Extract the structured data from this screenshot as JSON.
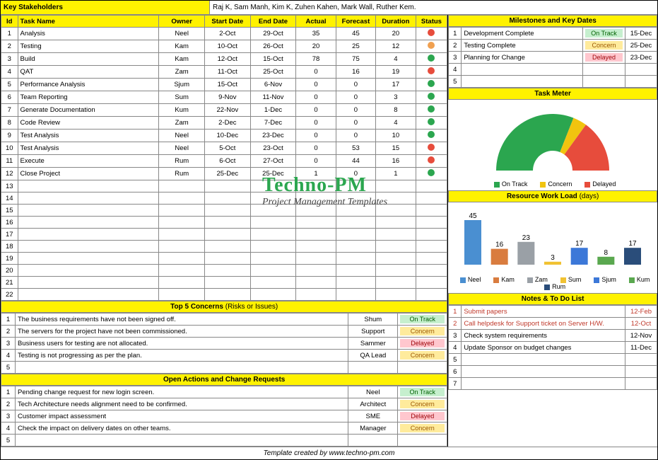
{
  "stakeholders": {
    "label": "Key Stakeholders",
    "names": "Raj K, Sam Manh, Kim K, Zuhen Kahen, Mark Wall, Ruther Kem."
  },
  "tasks": {
    "headers": [
      "Id",
      "Task Name",
      "Owner",
      "Start Date",
      "End Date",
      "Actual",
      "Forecast",
      "Duration",
      "Status"
    ],
    "rows": [
      {
        "id": 1,
        "name": "Analysis",
        "owner": "Neel",
        "start": "2-Oct",
        "end": "29-Oct",
        "actual": 35,
        "forecast": 45,
        "duration": 20,
        "status": "red"
      },
      {
        "id": 2,
        "name": "Testing",
        "owner": "Kam",
        "start": "10-Oct",
        "end": "26-Oct",
        "actual": 20,
        "forecast": 25,
        "duration": 12,
        "status": "orange"
      },
      {
        "id": 3,
        "name": "Build",
        "owner": "Kam",
        "start": "12-Oct",
        "end": "15-Oct",
        "actual": 78,
        "forecast": 75,
        "duration": 4,
        "status": "green"
      },
      {
        "id": 4,
        "name": "QAT",
        "owner": "Zam",
        "start": "11-Oct",
        "end": "25-Oct",
        "actual": 0,
        "forecast": 16,
        "duration": 19,
        "status": "red"
      },
      {
        "id": 5,
        "name": "Performance Analysis",
        "owner": "Sjum",
        "start": "15-Oct",
        "end": "6-Nov",
        "actual": 0,
        "forecast": 0,
        "duration": 17,
        "status": "green"
      },
      {
        "id": 6,
        "name": "Team Reporting",
        "owner": "Sum",
        "start": "9-Nov",
        "end": "11-Nov",
        "actual": 0,
        "forecast": 0,
        "duration": 3,
        "status": "green"
      },
      {
        "id": 7,
        "name": "Generate Documentation",
        "owner": "Kum",
        "start": "22-Nov",
        "end": "1-Dec",
        "actual": 0,
        "forecast": 0,
        "duration": 8,
        "status": "green"
      },
      {
        "id": 8,
        "name": "Code Review",
        "owner": "Zam",
        "start": "2-Dec",
        "end": "7-Dec",
        "actual": 0,
        "forecast": 0,
        "duration": 4,
        "status": "green"
      },
      {
        "id": 9,
        "name": "Test Analysis",
        "owner": "Neel",
        "start": "10-Dec",
        "end": "23-Dec",
        "actual": 0,
        "forecast": 0,
        "duration": 10,
        "status": "green"
      },
      {
        "id": 10,
        "name": "Test Analysis",
        "owner": "Neel",
        "start": "5-Oct",
        "end": "23-Oct",
        "actual": 0,
        "forecast": 53,
        "duration": 15,
        "status": "red"
      },
      {
        "id": 11,
        "name": "Execute",
        "owner": "Rum",
        "start": "6-Oct",
        "end": "27-Oct",
        "actual": 0,
        "forecast": 44,
        "duration": 16,
        "status": "red"
      },
      {
        "id": 12,
        "name": "Close Project",
        "owner": "Rum",
        "start": "25-Dec",
        "end": "25-Dec",
        "actual": 1,
        "forecast": 0,
        "duration": 1,
        "status": "green"
      }
    ],
    "blank_rows": [
      13,
      14,
      15,
      16,
      17,
      18,
      19,
      20,
      21,
      22
    ]
  },
  "milestones": {
    "title": "Milestones and Key Dates",
    "rows": [
      {
        "id": 1,
        "name": "Development Complete",
        "status": "On Track",
        "date": "15-Dec"
      },
      {
        "id": 2,
        "name": "Testing Complete",
        "status": "Concern",
        "date": "25-Dec"
      },
      {
        "id": 3,
        "name": "Planning for Change",
        "status": "Delayed",
        "date": "23-Dec"
      }
    ],
    "blank_ids": [
      4,
      5
    ]
  },
  "task_meter": {
    "title": "Task Meter",
    "slices": [
      {
        "label": "On Track",
        "color": "#2ba64f",
        "value": 62
      },
      {
        "label": "Concern",
        "color": "#f1c40f",
        "value": 8
      },
      {
        "label": "Delayed",
        "color": "#e74c3c",
        "value": 30
      }
    ],
    "legend": [
      "On Track",
      "Concern",
      "Delayed"
    ]
  },
  "workload": {
    "title": "Resource Work Load",
    "title_sub": "(days)",
    "bars": [
      {
        "name": "Neel",
        "value": 45,
        "color": "#4a8fd1"
      },
      {
        "name": "Kam",
        "value": 16,
        "color": "#d97c3f"
      },
      {
        "name": "Zam",
        "value": 23,
        "color": "#9aa0a6"
      },
      {
        "name": "Sum",
        "value": 3,
        "color": "#f1c232"
      },
      {
        "name": "Sjum",
        "value": 17,
        "color": "#3c78d8"
      },
      {
        "name": "Kum",
        "value": 8,
        "color": "#5aa84f"
      },
      {
        "name": "Rum",
        "value": 17,
        "color": "#2a4d7a"
      }
    ],
    "ymax": 50
  },
  "concerns": {
    "title": "Top 5 Concerns",
    "sub": "(Risks or Issues)",
    "rows": [
      {
        "id": 1,
        "text": "The business requirements have not been signed off.",
        "who": "Shum",
        "status": "On Track"
      },
      {
        "id": 2,
        "text": "The servers for the project have not been commissioned.",
        "who": "Support",
        "status": "Concern"
      },
      {
        "id": 3,
        "text": "Business users for testing are not allocated.",
        "who": "Sammer",
        "status": "Delayed"
      },
      {
        "id": 4,
        "text": "Testing is not progressing as per the plan.",
        "who": "QA Lead",
        "status": "Concern"
      }
    ],
    "blank_ids": [
      5
    ]
  },
  "open_actions": {
    "title": "Open Actions and Change Requests",
    "rows": [
      {
        "id": 1,
        "text": "Pending change request for new login screen.",
        "who": "Neel",
        "status": "On Track"
      },
      {
        "id": 2,
        "text": "Tech Architecture needs alignment need to be confirmed.",
        "who": "Architect",
        "status": "Concern"
      },
      {
        "id": 3,
        "text": "Customer impact assessment",
        "who": "SME",
        "status": "Delayed"
      },
      {
        "id": 4,
        "text": "Check the impact on delivery dates on other teams.",
        "who": "Manager",
        "status": "Concern"
      }
    ],
    "blank_ids": [
      5
    ]
  },
  "notes": {
    "title": "Notes & To Do List",
    "rows": [
      {
        "id": 1,
        "text": "Submit papers",
        "date": "12-Feb",
        "red": true
      },
      {
        "id": 2,
        "text": "Call helpdesk for Support ticket on Server H/W.",
        "date": "12-Oct",
        "red": true
      },
      {
        "id": 3,
        "text": "Check system requirements",
        "date": "12-Nov",
        "red": false
      },
      {
        "id": 4,
        "text": "Update Sponsor on budget changes",
        "date": "11-Dec",
        "red": false
      }
    ],
    "blank_ids": [
      5,
      6,
      7
    ]
  },
  "watermark": {
    "brand": "Techno-PM",
    "sub": "Project Management Templates"
  },
  "footer": "Template created by www.techno-pm.com",
  "status_colors": {
    "On Track": "pill-track",
    "Concern": "pill-concern",
    "Delayed": "pill-delayed"
  }
}
